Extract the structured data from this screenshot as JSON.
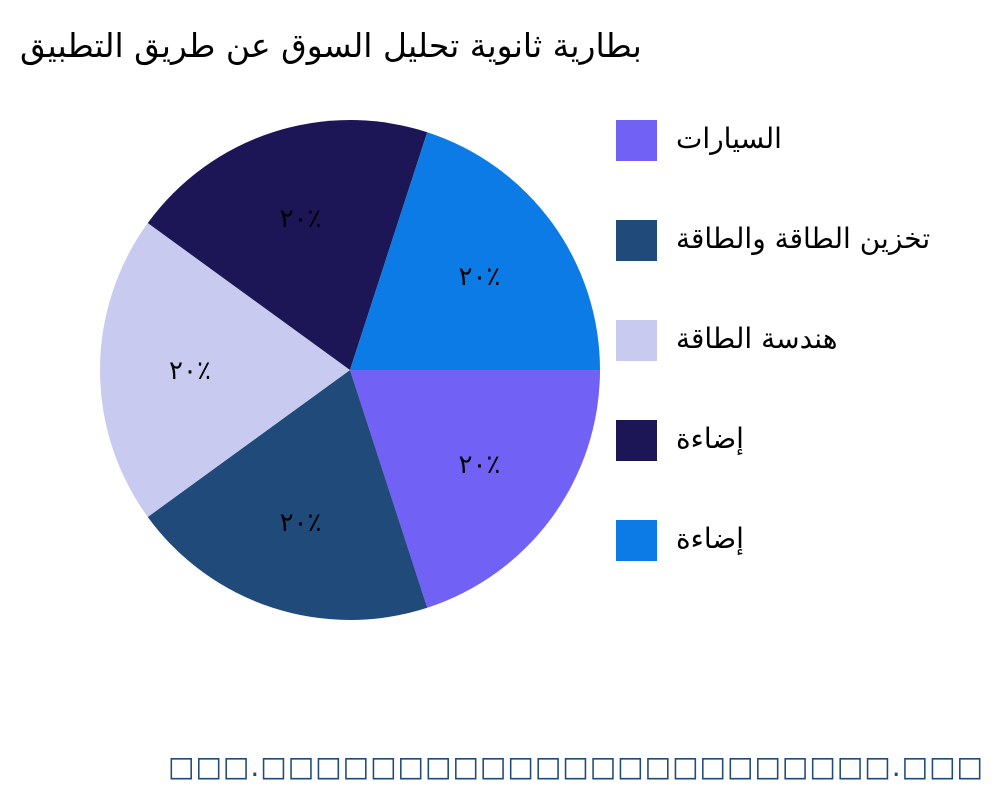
{
  "chart_data": {
    "type": "pie",
    "title": "بطارية ثانوية تحليل السوق عن طريق التطبيق",
    "categories": [
      "السيارات",
      "تخزين الطاقة والطاقة",
      "هندسة الطاقة",
      "إضاءة",
      "إضاءة"
    ],
    "values": [
      20,
      20,
      20,
      20,
      20
    ],
    "data_labels": [
      "٢٠٪",
      "٢٠٪",
      "٢٠٪",
      "٢٠٪",
      "٢٠٪"
    ],
    "colors": [
      "#7161F4",
      "#1F4A7A",
      "#C8CAF0",
      "#1C1656",
      "#0D7BE6"
    ],
    "legend_position": "right"
  },
  "footer": "□□□.□□□□□□□□□□□□□□□□□□□□□□□.□□□"
}
